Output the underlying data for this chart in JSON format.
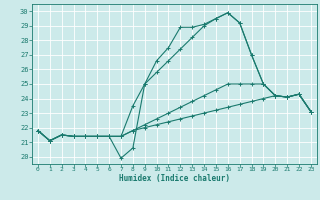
{
  "xlabel": "Humidex (Indice chaleur)",
  "bg_color": "#cceaea",
  "grid_color": "#ffffff",
  "line_color": "#1a7a6e",
  "xlim": [
    -0.5,
    23.5
  ],
  "ylim": [
    19.5,
    30.5
  ],
  "xticks": [
    0,
    1,
    2,
    3,
    4,
    5,
    6,
    7,
    8,
    9,
    10,
    11,
    12,
    13,
    14,
    15,
    16,
    17,
    18,
    19,
    20,
    21,
    22,
    23
  ],
  "yticks": [
    20,
    21,
    22,
    23,
    24,
    25,
    26,
    27,
    28,
    29,
    30
  ],
  "series": [
    [
      21.8,
      21.1,
      21.5,
      21.4,
      21.4,
      21.4,
      21.4,
      19.9,
      20.6,
      25.0,
      26.6,
      27.5,
      28.9,
      28.9,
      29.1,
      29.5,
      29.9,
      29.2,
      27.0,
      25.0,
      24.2,
      24.1,
      24.3,
      23.1
    ],
    [
      21.8,
      21.1,
      21.5,
      21.4,
      21.4,
      21.4,
      21.4,
      21.4,
      23.5,
      25.0,
      25.8,
      26.6,
      27.4,
      28.2,
      29.0,
      29.5,
      29.9,
      29.2,
      27.0,
      25.0,
      24.2,
      24.1,
      24.3,
      23.1
    ],
    [
      21.8,
      21.1,
      21.5,
      21.4,
      21.4,
      21.4,
      21.4,
      21.4,
      21.8,
      22.2,
      22.6,
      23.0,
      23.4,
      23.8,
      24.2,
      24.6,
      25.0,
      25.0,
      25.0,
      25.0,
      24.2,
      24.1,
      24.3,
      23.1
    ],
    [
      21.8,
      21.1,
      21.5,
      21.4,
      21.4,
      21.4,
      21.4,
      21.4,
      21.8,
      22.0,
      22.2,
      22.4,
      22.6,
      22.8,
      23.0,
      23.2,
      23.4,
      23.6,
      23.8,
      24.0,
      24.2,
      24.1,
      24.3,
      23.1
    ]
  ]
}
